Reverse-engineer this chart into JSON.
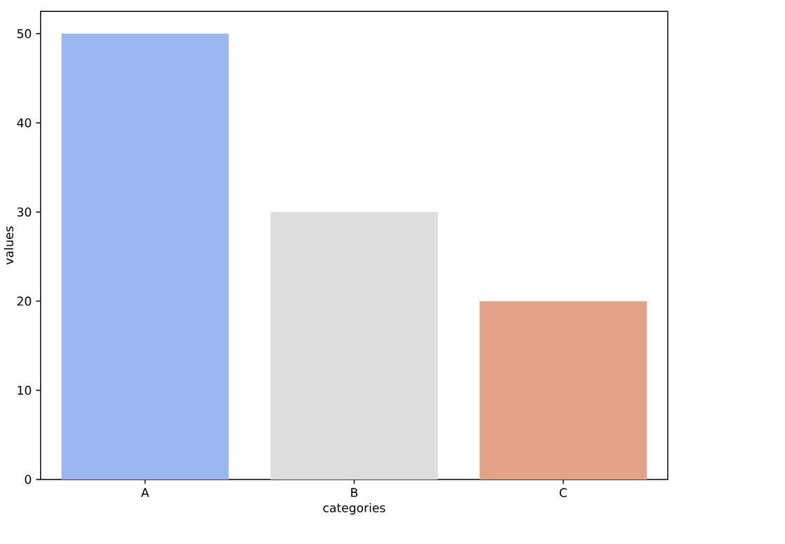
{
  "chart_data": {
    "type": "bar",
    "xlabel": "categories",
    "ylabel": "values",
    "categories": [
      "A",
      "B",
      "C"
    ],
    "values": [
      50,
      30,
      20
    ],
    "colors": [
      "#9bb6f1",
      "#dddddd",
      "#e4a389"
    ],
    "ylim": [
      0,
      52.5
    ],
    "yticks": [
      0,
      10,
      20,
      30,
      40,
      50
    ]
  }
}
